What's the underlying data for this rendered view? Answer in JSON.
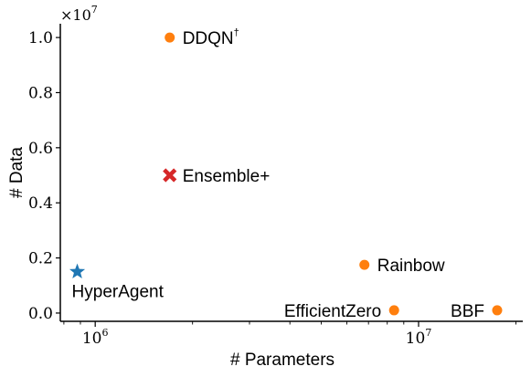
{
  "chart_data": {
    "type": "scatter",
    "xlabel": "# Parameters",
    "ylabel": "# Data",
    "xscale": "log",
    "xlim": [
      780000,
      21000000
    ],
    "ylim": [
      -0.03,
      1.05
    ],
    "y_multiplier": "×10",
    "y_multiplier_exp": "7",
    "yticks": [
      {
        "value": 0.0,
        "label": "0.0"
      },
      {
        "value": 0.2,
        "label": "0.2"
      },
      {
        "value": 0.4,
        "label": "0.4"
      },
      {
        "value": 0.6,
        "label": "0.6"
      },
      {
        "value": 0.8,
        "label": "0.8"
      },
      {
        "value": 1.0,
        "label": "1.0"
      }
    ],
    "xticks": [
      {
        "value": 1000000,
        "base": "10",
        "exp": "6"
      },
      {
        "value": 10000000,
        "base": "10",
        "exp": "7"
      }
    ],
    "points": [
      {
        "label": "DDQN",
        "label_sup": "†",
        "x": 1700000,
        "y": 1.0,
        "marker": "circle",
        "color": "#ff7f0e",
        "label_pos": "right"
      },
      {
        "label": "Ensemble+",
        "label_sup": "",
        "x": 1700000,
        "y": 0.5,
        "marker": "x",
        "color": "#d62728",
        "label_pos": "right"
      },
      {
        "label": "HyperAgent",
        "label_sup": "",
        "x": 880000,
        "y": 0.15,
        "marker": "star",
        "color": "#1f77b4",
        "label_pos": "below"
      },
      {
        "label": "Rainbow",
        "label_sup": "",
        "x": 6800000,
        "y": 0.175,
        "marker": "circle",
        "color": "#ff7f0e",
        "label_pos": "right"
      },
      {
        "label": "EfficientZero",
        "label_sup": "",
        "x": 8400000,
        "y": 0.01,
        "marker": "circle",
        "color": "#ff7f0e",
        "label_pos": "left"
      },
      {
        "label": "BBF",
        "label_sup": "",
        "x": 17500000,
        "y": 0.01,
        "marker": "circle",
        "color": "#ff7f0e",
        "label_pos": "left"
      }
    ]
  }
}
